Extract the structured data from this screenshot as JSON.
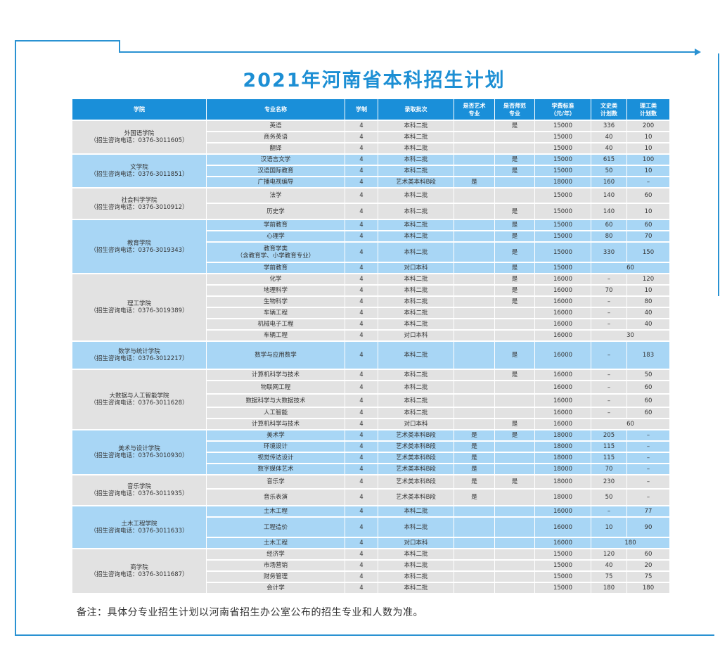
{
  "title": "2021年河南省本科招生计划",
  "colors": {
    "accent": "#1a8fd9",
    "row_gray": "#e2e2e2",
    "row_blue": "#a8d6f5",
    "title": "#1d8fd4"
  },
  "headers": {
    "college": "学院",
    "major": "专业名称",
    "years": "学制",
    "batch": "录取批次",
    "art_1": "是否艺术",
    "art_2": "专业",
    "normal_1": "是否师范",
    "normal_2": "专业",
    "fee_1": "学费标准",
    "fee_2": "（元/年）",
    "arts_1": "文史类",
    "arts_2": "计划数",
    "sci_1": "理工类",
    "sci_2": "计划数"
  },
  "colleges": [
    {
      "name": "外国语学院",
      "phone": "（招生咨询电话：0376-3011605）",
      "rows": [
        {
          "major": "英语",
          "years": "4",
          "batch": "本科二批",
          "art": "",
          "normal": "是",
          "fee": "15000",
          "arts": "336",
          "sci": "200"
        },
        {
          "major": "商务英语",
          "years": "4",
          "batch": "本科二批",
          "art": "",
          "normal": "",
          "fee": "15000",
          "arts": "40",
          "sci": "10"
        },
        {
          "major": "翻译",
          "years": "4",
          "batch": "本科二批",
          "art": "",
          "normal": "",
          "fee": "15000",
          "arts": "40",
          "sci": "10"
        }
      ]
    },
    {
      "name": "文学院",
      "phone": "（招生咨询电话：0376-3011851）",
      "rows": [
        {
          "major": "汉语言文学",
          "years": "4",
          "batch": "本科二批",
          "art": "",
          "normal": "是",
          "fee": "15000",
          "arts": "615",
          "sci": "100"
        },
        {
          "major": "汉语国际教育",
          "years": "4",
          "batch": "本科二批",
          "art": "",
          "normal": "是",
          "fee": "15000",
          "arts": "50",
          "sci": "10"
        },
        {
          "major": "广播电视编导",
          "years": "4",
          "batch": "艺术类本科B段",
          "art": "是",
          "normal": "",
          "fee": "18000",
          "arts": "160",
          "sci": "–"
        }
      ]
    },
    {
      "name": "社会科学学院",
      "phone": "（招生咨询电话：0376-3010912）",
      "rows": [
        {
          "major": "法学",
          "years": "4",
          "batch": "本科二批",
          "art": "",
          "normal": "",
          "fee": "15000",
          "arts": "140",
          "sci": "60"
        },
        {
          "major": "历史学",
          "years": "4",
          "batch": "本科二批",
          "art": "",
          "normal": "是",
          "fee": "15000",
          "arts": "140",
          "sci": "10"
        }
      ]
    },
    {
      "name": "教育学院",
      "phone": "（招生咨询电话：0376-3019343）",
      "rows": [
        {
          "major": "学前教育",
          "years": "4",
          "batch": "本科二批",
          "art": "",
          "normal": "是",
          "fee": "15000",
          "arts": "60",
          "sci": "60"
        },
        {
          "major": "心理学",
          "years": "4",
          "batch": "本科二批",
          "art": "",
          "normal": "是",
          "fee": "15000",
          "arts": "80",
          "sci": "70"
        },
        {
          "major": "教育学类",
          "major_2": "（含教育学、小学教育专业）",
          "years": "4",
          "batch": "本科二批",
          "art": "",
          "normal": "是",
          "fee": "15000",
          "arts": "330",
          "sci": "150"
        },
        {
          "major": "学前教育",
          "years": "4",
          "batch": "对口本科",
          "art": "",
          "normal": "是",
          "fee": "15000",
          "combined": "60"
        }
      ]
    },
    {
      "name": "理工学院",
      "phone": "（招生咨询电话：0376-3019389）",
      "rows": [
        {
          "major": "化学",
          "years": "4",
          "batch": "本科二批",
          "art": "",
          "normal": "是",
          "fee": "16000",
          "arts": "–",
          "sci": "120"
        },
        {
          "major": "地理科学",
          "years": "4",
          "batch": "本科二批",
          "art": "",
          "normal": "是",
          "fee": "16000",
          "arts": "70",
          "sci": "10"
        },
        {
          "major": "生物科学",
          "years": "4",
          "batch": "本科二批",
          "art": "",
          "normal": "是",
          "fee": "16000",
          "arts": "–",
          "sci": "80"
        },
        {
          "major": "车辆工程",
          "years": "4",
          "batch": "本科二批",
          "art": "",
          "normal": "",
          "fee": "16000",
          "arts": "–",
          "sci": "40"
        },
        {
          "major": "机械电子工程",
          "years": "4",
          "batch": "本科二批",
          "art": "",
          "normal": "",
          "fee": "16000",
          "arts": "–",
          "sci": "40"
        },
        {
          "major": "车辆工程",
          "years": "4",
          "batch": "对口本科",
          "art": "",
          "normal": "",
          "fee": "16000",
          "combined": "30"
        }
      ]
    },
    {
      "name": "数学与统计学院",
      "phone": "（招生咨询电话：0376-3012217）",
      "rows": [
        {
          "major": "数学与应用数学",
          "years": "4",
          "batch": "本科二批",
          "art": "",
          "normal": "是",
          "fee": "16000",
          "arts": "–",
          "sci": "183"
        }
      ]
    },
    {
      "name": "大数据与人工智能学院",
      "phone": "（招生咨询电话：0376-3011628）",
      "rows": [
        {
          "major": "计算机科学与技术",
          "years": "4",
          "batch": "本科二批",
          "art": "",
          "normal": "是",
          "fee": "16000",
          "arts": "–",
          "sci": "50"
        },
        {
          "major": "物联网工程",
          "years": "4",
          "batch": "本科二批",
          "art": "",
          "normal": "",
          "fee": "16000",
          "arts": "–",
          "sci": "60"
        },
        {
          "major": "数据科学与大数据技术",
          "years": "4",
          "batch": "本科二批",
          "art": "",
          "normal": "",
          "fee": "16000",
          "arts": "–",
          "sci": "60"
        },
        {
          "major": "人工智能",
          "years": "4",
          "batch": "本科二批",
          "art": "",
          "normal": "",
          "fee": "16000",
          "arts": "–",
          "sci": "60"
        },
        {
          "major": "计算机科学与技术",
          "years": "4",
          "batch": "对口本科",
          "art": "",
          "normal": "是",
          "fee": "16000",
          "combined": "60"
        }
      ]
    },
    {
      "name": "美术与设计学院",
      "phone": "（招生咨询电话：0376-3010930）",
      "rows": [
        {
          "major": "美术学",
          "years": "4",
          "batch": "艺术类本科B段",
          "art": "是",
          "normal": "是",
          "fee": "18000",
          "arts": "205",
          "sci": "–"
        },
        {
          "major": "环境设计",
          "years": "4",
          "batch": "艺术类本科B段",
          "art": "是",
          "normal": "",
          "fee": "18000",
          "arts": "115",
          "sci": "–"
        },
        {
          "major": "视觉传达设计",
          "years": "4",
          "batch": "艺术类本科B段",
          "art": "是",
          "normal": "",
          "fee": "18000",
          "arts": "115",
          "sci": "–"
        },
        {
          "major": "数字媒体艺术",
          "years": "4",
          "batch": "艺术类本科B段",
          "art": "是",
          "normal": "",
          "fee": "18000",
          "arts": "70",
          "sci": "–"
        }
      ]
    },
    {
      "name": "音乐学院",
      "phone": "（招生咨询电话：0376-3011935）",
      "rows": [
        {
          "major": "音乐学",
          "years": "4",
          "batch": "艺术类本科B段",
          "art": "是",
          "normal": "是",
          "fee": "18000",
          "arts": "230",
          "sci": "–"
        },
        {
          "major": "音乐表演",
          "years": "4",
          "batch": "艺术类本科B段",
          "art": "是",
          "normal": "",
          "fee": "18000",
          "arts": "50",
          "sci": "–"
        }
      ]
    },
    {
      "name": "土木工程学院",
      "phone": "（招生咨询电话：0376-3011633）",
      "rows": [
        {
          "major": "土木工程",
          "years": "4",
          "batch": "本科二批",
          "art": "",
          "normal": "",
          "fee": "16000",
          "arts": "–",
          "sci": "77"
        },
        {
          "major": "工程造价",
          "years": "4",
          "batch": "本科二批",
          "art": "",
          "normal": "",
          "fee": "16000",
          "arts": "10",
          "sci": "90"
        },
        {
          "major": "土木工程",
          "years": "4",
          "batch": "对口本科",
          "art": "",
          "normal": "",
          "fee": "16000",
          "combined": "180"
        }
      ]
    },
    {
      "name": "商学院",
      "phone": "（招生咨询电话：0376-3011687）",
      "rows": [
        {
          "major": "经济学",
          "years": "4",
          "batch": "本科二批",
          "art": "",
          "normal": "",
          "fee": "15000",
          "arts": "120",
          "sci": "60"
        },
        {
          "major": "市场营销",
          "years": "4",
          "batch": "本科二批",
          "art": "",
          "normal": "",
          "fee": "15000",
          "arts": "40",
          "sci": "20"
        },
        {
          "major": "财务管理",
          "years": "4",
          "batch": "本科二批",
          "art": "",
          "normal": "",
          "fee": "15000",
          "arts": "75",
          "sci": "75"
        },
        {
          "major": "会计学",
          "years": "4",
          "batch": "本科二批",
          "art": "",
          "normal": "",
          "fee": "15000",
          "arts": "180",
          "sci": "180"
        }
      ]
    }
  ],
  "note": "备注：具体分专业招生计划以河南省招生办公室公布的招生专业和人数为准。"
}
